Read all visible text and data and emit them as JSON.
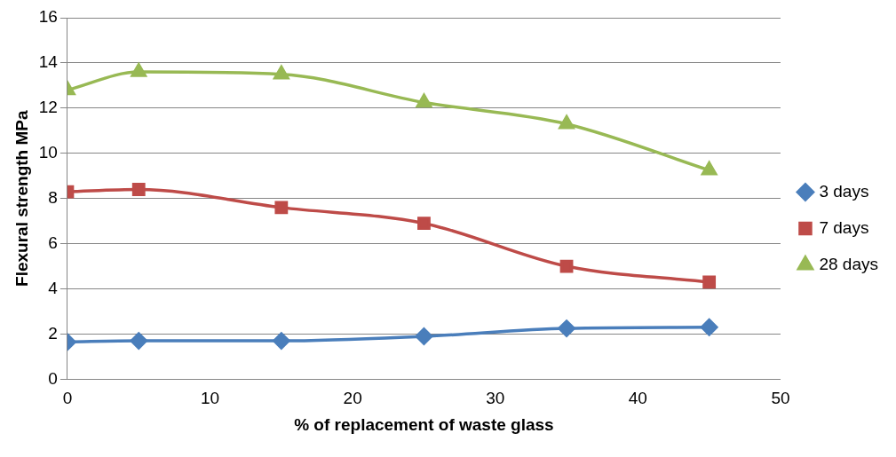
{
  "chart_data": {
    "type": "line",
    "xlabel": "% of replacement of waste glass",
    "ylabel": "Flexural strength MPa",
    "x": [
      0,
      5,
      15,
      25,
      35,
      45
    ],
    "series": [
      {
        "name": "3 days",
        "color": "#4a7ebb",
        "marker": "diamond",
        "values": [
          1.65,
          1.7,
          1.7,
          1.9,
          2.25,
          2.3
        ]
      },
      {
        "name": "7 days",
        "color": "#be4b48",
        "marker": "square",
        "values": [
          8.3,
          8.4,
          7.6,
          6.9,
          5.0,
          4.3
        ]
      },
      {
        "name": "28 days",
        "color": "#98b954",
        "marker": "triangle",
        "values": [
          12.8,
          13.6,
          13.5,
          12.25,
          11.3,
          9.25
        ]
      }
    ],
    "xlim": [
      0,
      50
    ],
    "xticks": [
      0,
      10,
      20,
      30,
      40,
      50
    ],
    "ylim": [
      0,
      16
    ],
    "yticks": [
      0,
      2,
      4,
      6,
      8,
      10,
      12,
      14,
      16
    ],
    "grid": "y",
    "legend": "right"
  }
}
